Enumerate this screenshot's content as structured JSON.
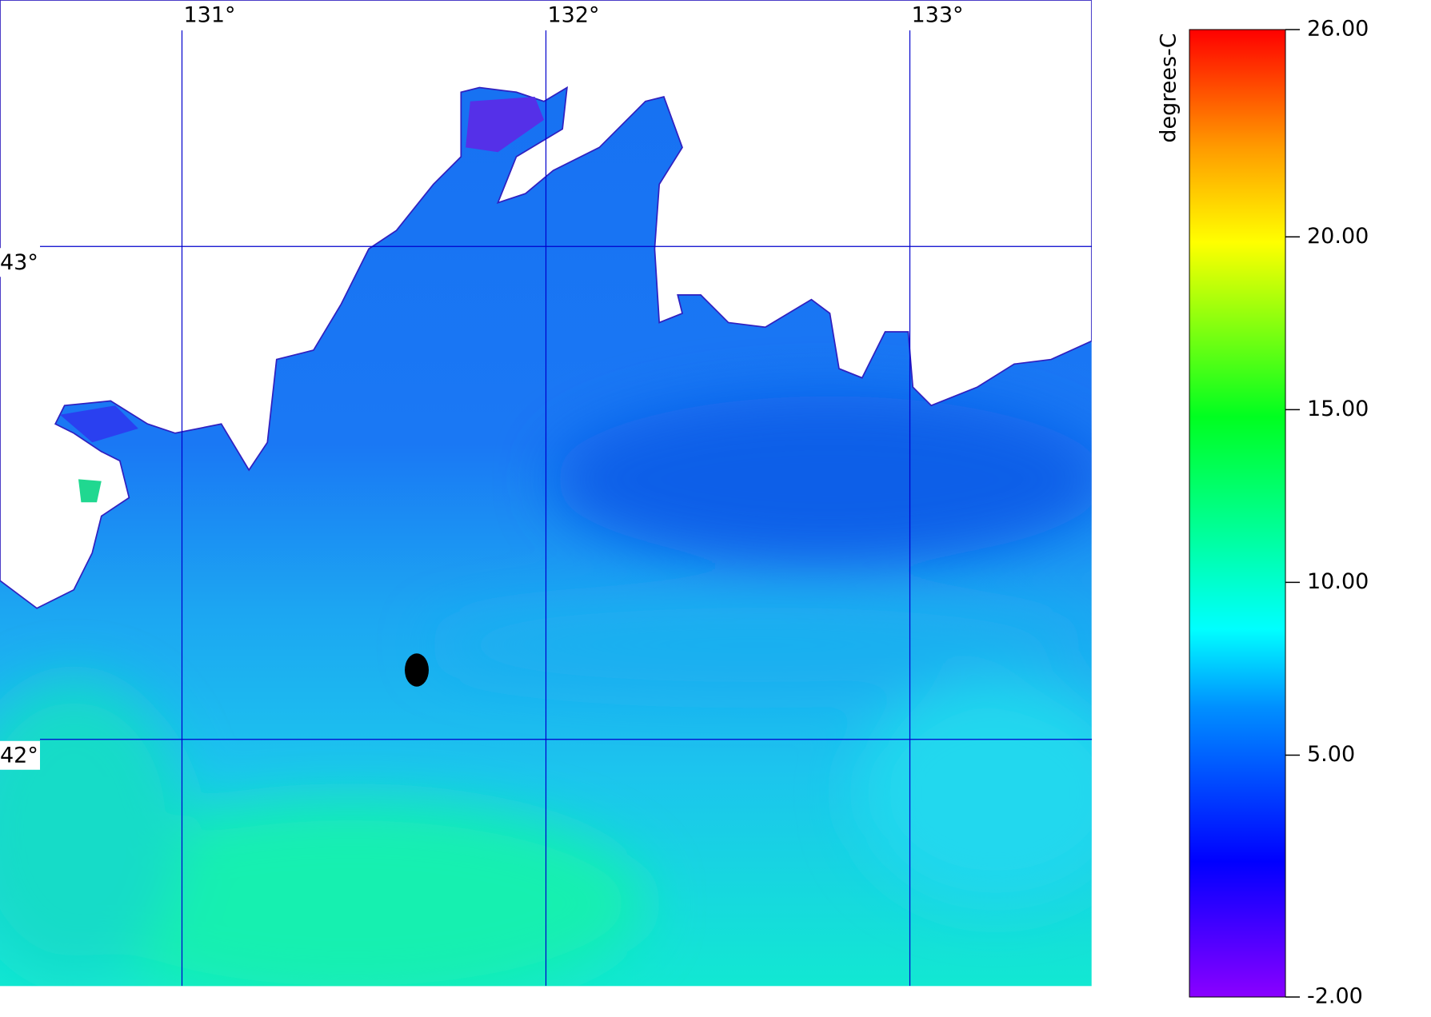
{
  "map": {
    "lon_range": [
      130.5,
      133.5
    ],
    "lat_range": [
      41.5,
      43.5
    ],
    "lon_lines": [
      {
        "value": 131,
        "label": "131°"
      },
      {
        "value": 132,
        "label": "132°"
      },
      {
        "value": 133,
        "label": "133°"
      }
    ],
    "lat_lines": [
      {
        "value": 43,
        "label": "43°"
      },
      {
        "value": 42,
        "label": "42°"
      }
    ]
  },
  "colorbar": {
    "label": "degrees-C",
    "range": [
      -2,
      26
    ],
    "ticks": [
      {
        "value": 26,
        "label": "26.00"
      },
      {
        "value": 20,
        "label": "20.00"
      },
      {
        "value": 15,
        "label": "15.00"
      },
      {
        "value": 10,
        "label": "10.00"
      },
      {
        "value": 5,
        "label": "5.00"
      },
      {
        "value": -2,
        "label": "-2.00"
      }
    ]
  }
}
